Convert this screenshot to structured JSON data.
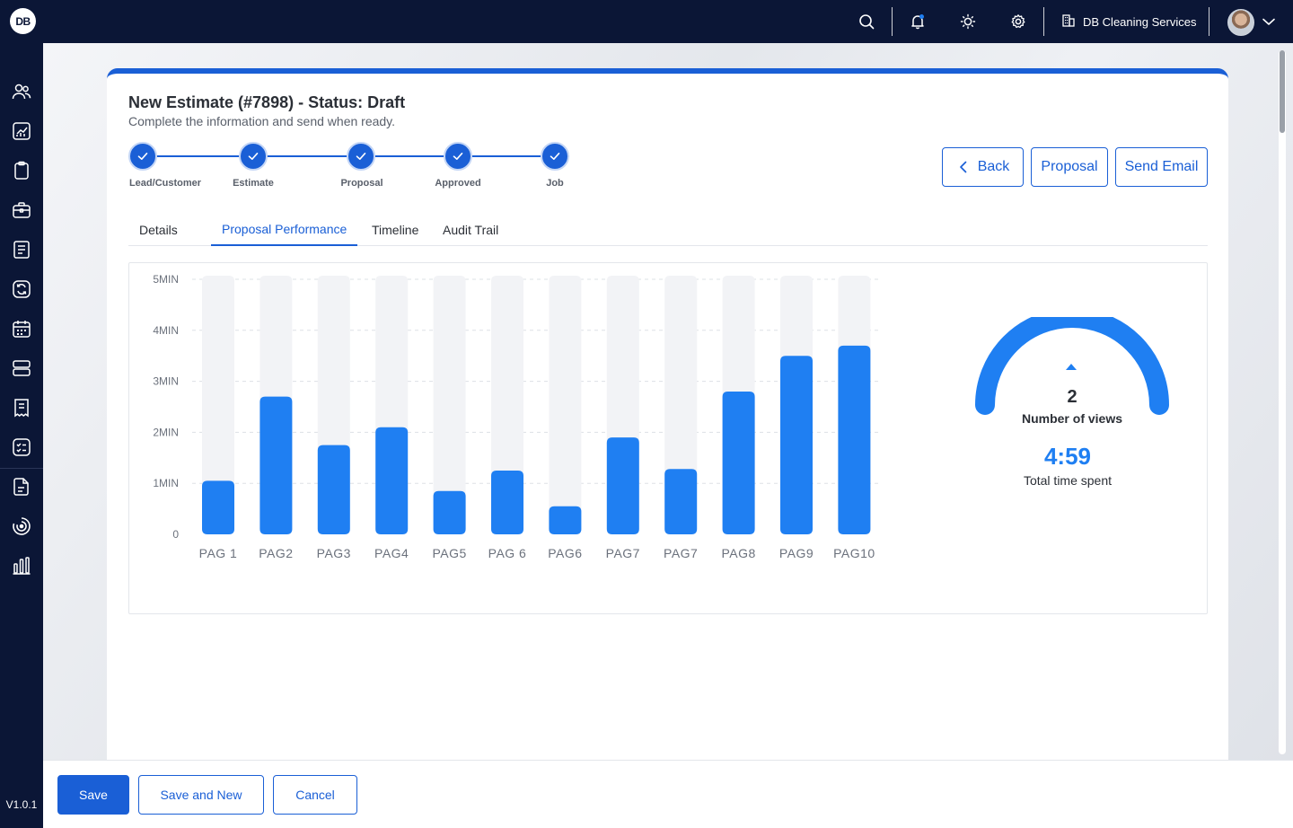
{
  "topbar": {
    "logo_text": "DB",
    "company_name": "DB Cleaning Services",
    "icons": [
      "search-icon",
      "bell-icon",
      "sun-icon",
      "gear-icon",
      "building-icon",
      "avatar",
      "chevron-down-icon"
    ]
  },
  "sidebar": {
    "items": [
      "users-icon",
      "analytics-icon",
      "clipboard-icon",
      "briefcase-icon",
      "document-list-icon",
      "refresh-icon",
      "calendar-icon",
      "server-icon",
      "receipt-icon",
      "checklist-icon",
      "file-icon",
      "target-icon",
      "bar-chart-icon"
    ],
    "version": "V1.0.1"
  },
  "page": {
    "title": "New Estimate (#7898) - Status: Draft",
    "subtitle": "Complete the information and send when ready."
  },
  "stepper": {
    "steps": [
      {
        "label": "Lead/Customer",
        "done": true
      },
      {
        "label": "Estimate",
        "done": true
      },
      {
        "label": "Proposal",
        "done": true
      },
      {
        "label": "Approved",
        "done": true
      },
      {
        "label": "Job",
        "done": true
      }
    ]
  },
  "actions": {
    "back_label": "Back",
    "proposal_label": "Proposal",
    "send_email_label": "Send Email"
  },
  "tabs": [
    {
      "label": "Details",
      "active": false
    },
    {
      "label": "Proposal Performance",
      "active": true
    },
    {
      "label": "Timeline",
      "active": false
    },
    {
      "label": "Audit Trail",
      "active": false
    }
  ],
  "chart_data": {
    "type": "bar",
    "categories": [
      "PAG 1",
      "PAG2",
      "PAG3",
      "PAG4",
      "PAG5",
      "PAG 6",
      "PAG6",
      "PAG7",
      "PAG7",
      "PAG8",
      "PAG9",
      "PAG10"
    ],
    "values": [
      1.05,
      2.7,
      1.75,
      2.1,
      0.85,
      1.25,
      0.55,
      1.9,
      1.28,
      2.8,
      3.5,
      3.7
    ],
    "unit": "MIN",
    "ytick_labels": [
      "0",
      "1MIN",
      "2MIN",
      "3MIN",
      "4MIN",
      "5MIN"
    ],
    "ylim": [
      0,
      5
    ],
    "grid": true,
    "colors": {
      "bar": "#1f7ff2",
      "track": "#f2f3f6"
    }
  },
  "summary": {
    "views_value": "2",
    "views_label": "Number of views",
    "time_value": "4:59",
    "time_label": "Total time spent",
    "gauge_color": "#1f7ff2"
  },
  "footer": {
    "save_label": "Save",
    "save_new_label": "Save and New",
    "cancel_label": "Cancel"
  }
}
